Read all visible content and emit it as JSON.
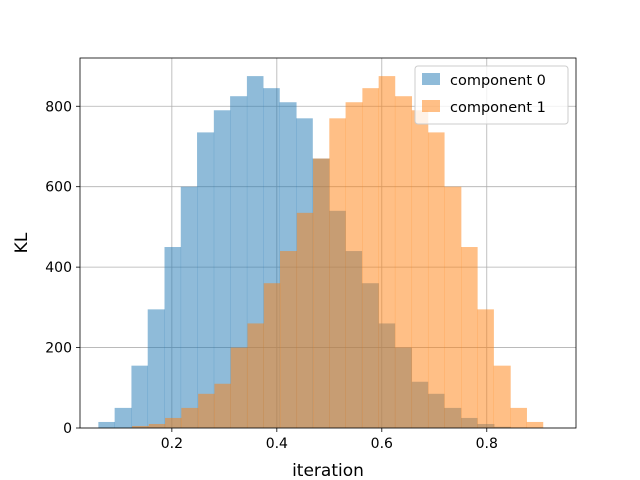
{
  "chart_data": {
    "type": "histogram",
    "xlabel": "iteration",
    "ylabel": "KL",
    "xlim": [
      0.025,
      0.97
    ],
    "ylim": [
      0,
      920
    ],
    "xticks": [
      0.2,
      0.4,
      0.6,
      0.8
    ],
    "xtick_labels": [
      "0.2",
      "0.4",
      "0.6",
      "0.8"
    ],
    "yticks": [
      0,
      200,
      400,
      600,
      800
    ],
    "ytick_labels": [
      "0",
      "200",
      "400",
      "600",
      "800"
    ],
    "grid": true,
    "legend_position": "top-right",
    "series": [
      {
        "name": "component 0",
        "color": "#1f77b4",
        "alpha": 0.5,
        "bin_edges": [
          0.06,
          0.091,
          0.123,
          0.154,
          0.186,
          0.217,
          0.248,
          0.28,
          0.311,
          0.343,
          0.374,
          0.405,
          0.437,
          0.468,
          0.5,
          0.531,
          0.562,
          0.594,
          0.625,
          0.657,
          0.688,
          0.719,
          0.751,
          0.782,
          0.814,
          0.845,
          0.876,
          0.908
        ],
        "counts": [
          15,
          50,
          155,
          295,
          450,
          600,
          735,
          790,
          825,
          875,
          845,
          810,
          770,
          670,
          540,
          440,
          360,
          260,
          200,
          115,
          85,
          50,
          25,
          10,
          3,
          1,
          0
        ]
      },
      {
        "name": "component 1",
        "color": "#ff7f0e",
        "alpha": 0.5,
        "bin_edges": [
          0.124,
          0.156,
          0.187,
          0.218,
          0.25,
          0.281,
          0.312,
          0.344,
          0.375,
          0.406,
          0.438,
          0.469,
          0.5,
          0.531,
          0.563,
          0.594,
          0.625,
          0.657,
          0.688,
          0.719,
          0.751,
          0.782,
          0.813,
          0.845,
          0.876,
          0.907,
          0.939
        ],
        "counts": [
          5,
          10,
          25,
          50,
          85,
          110,
          200,
          260,
          360,
          440,
          535,
          670,
          770,
          810,
          845,
          875,
          825,
          790,
          735,
          600,
          450,
          295,
          155,
          50,
          15,
          0
        ]
      }
    ]
  }
}
